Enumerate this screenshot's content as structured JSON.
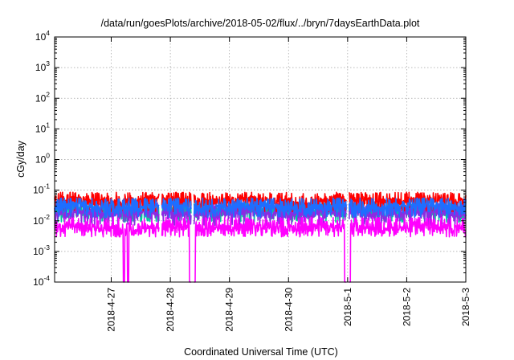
{
  "chart_data": {
    "type": "line",
    "title": "/data/run/goesPlots/archive/2018-05-02/flux/../bryn/7daysEarthData.plot",
    "xlabel": "Coordinated Universal Time (UTC)",
    "ylabel": "cGy/day",
    "yscale": "log",
    "ylim": [
      0.0001,
      10000
    ],
    "xlim": [
      "2018-04-26T01:00",
      "2018-05-03T00:00"
    ],
    "grid": true,
    "x_ticks": [
      "2018-4-27",
      "2018-4-28",
      "2018-4-29",
      "2018-4-30",
      "2018-5-1",
      "2018-5-2",
      "2018-5-3"
    ],
    "y_ticks": [
      {
        "value": 0.0001,
        "base": "10",
        "exp": "-4"
      },
      {
        "value": 0.001,
        "base": "10",
        "exp": "-3"
      },
      {
        "value": 0.01,
        "base": "10",
        "exp": "-2"
      },
      {
        "value": 0.1,
        "base": "10",
        "exp": "-1"
      },
      {
        "value": 1,
        "base": "10",
        "exp": "0"
      },
      {
        "value": 10,
        "base": "10",
        "exp": "1"
      },
      {
        "value": 100,
        "base": "10",
        "exp": "2"
      },
      {
        "value": 1000,
        "base": "10",
        "exp": "3"
      },
      {
        "value": 10000,
        "base": "10",
        "exp": "4"
      }
    ],
    "series": [
      {
        "color": "#ff0000",
        "level_typical": 0.045,
        "level_min": 0.02,
        "level_max": 0.085
      },
      {
        "color": "#8b2be2",
        "level_typical": 0.018,
        "level_min": 0.007,
        "level_max": 0.04
      },
      {
        "color": "#00c8a0",
        "level_typical": 0.02,
        "level_min": 0.009,
        "level_max": 0.04
      },
      {
        "color": "#1e6eff",
        "level_typical": 0.028,
        "level_min": 0.013,
        "level_max": 0.055
      },
      {
        "color": "#ff00ff",
        "level_typical": 0.006,
        "level_min": 0.003,
        "level_max": 0.013
      }
    ],
    "data_gaps": [
      "2018-4-27T20:00",
      "2018-4-28T09:00",
      "2018-5-1T00:00"
    ],
    "magenta_dropouts": [
      "2018-4-27T06:00",
      "2018-4-28T09:00",
      "2018-5-1T00:00"
    ]
  }
}
